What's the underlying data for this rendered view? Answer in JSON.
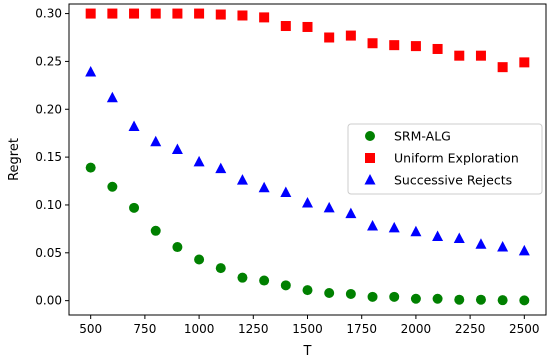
{
  "chart_data": {
    "type": "scatter",
    "xlabel": "T",
    "ylabel": "Regret",
    "xlim": [
      400,
      2600
    ],
    "ylim": [
      -0.015,
      0.31
    ],
    "xticks": [
      500,
      750,
      1000,
      1250,
      1500,
      1750,
      2000,
      2250,
      2500
    ],
    "xtick_labels": [
      "500",
      "750",
      "1000",
      "1250",
      "1500",
      "1750",
      "2000",
      "2250",
      "2500"
    ],
    "yticks": [
      0.0,
      0.05,
      0.1,
      0.15,
      0.2,
      0.25,
      0.3
    ],
    "ytick_labels": [
      "0.00",
      "0.05",
      "0.10",
      "0.15",
      "0.20",
      "0.25",
      "0.30"
    ],
    "grid": false,
    "legend_position": "center-right",
    "x": [
      500,
      600,
      700,
      800,
      900,
      1000,
      1100,
      1200,
      1300,
      1400,
      1500,
      1600,
      1700,
      1800,
      1900,
      2000,
      2100,
      2200,
      2300,
      2400,
      2500
    ],
    "series": [
      {
        "name": "SRM-ALG",
        "marker": "circle",
        "color": "#008000",
        "values": [
          0.139,
          0.119,
          0.097,
          0.073,
          0.056,
          0.043,
          0.034,
          0.024,
          0.021,
          0.016,
          0.011,
          0.008,
          0.007,
          0.004,
          0.004,
          0.002,
          0.002,
          0.001,
          0.001,
          0.0005,
          0.0003
        ]
      },
      {
        "name": "Uniform Exploration",
        "marker": "square",
        "color": "#ff0000",
        "values": [
          0.3,
          0.3,
          0.3,
          0.3,
          0.3,
          0.3,
          0.299,
          0.298,
          0.296,
          0.287,
          0.286,
          0.275,
          0.277,
          0.269,
          0.267,
          0.266,
          0.263,
          0.256,
          0.256,
          0.244,
          0.249
        ]
      },
      {
        "name": "Successive Rejects",
        "marker": "triangle",
        "color": "#0000ff",
        "values": [
          0.239,
          0.212,
          0.182,
          0.166,
          0.158,
          0.145,
          0.138,
          0.126,
          0.118,
          0.113,
          0.102,
          0.097,
          0.091,
          0.078,
          0.076,
          0.072,
          0.067,
          0.065,
          0.059,
          0.056,
          0.052
        ]
      }
    ]
  }
}
